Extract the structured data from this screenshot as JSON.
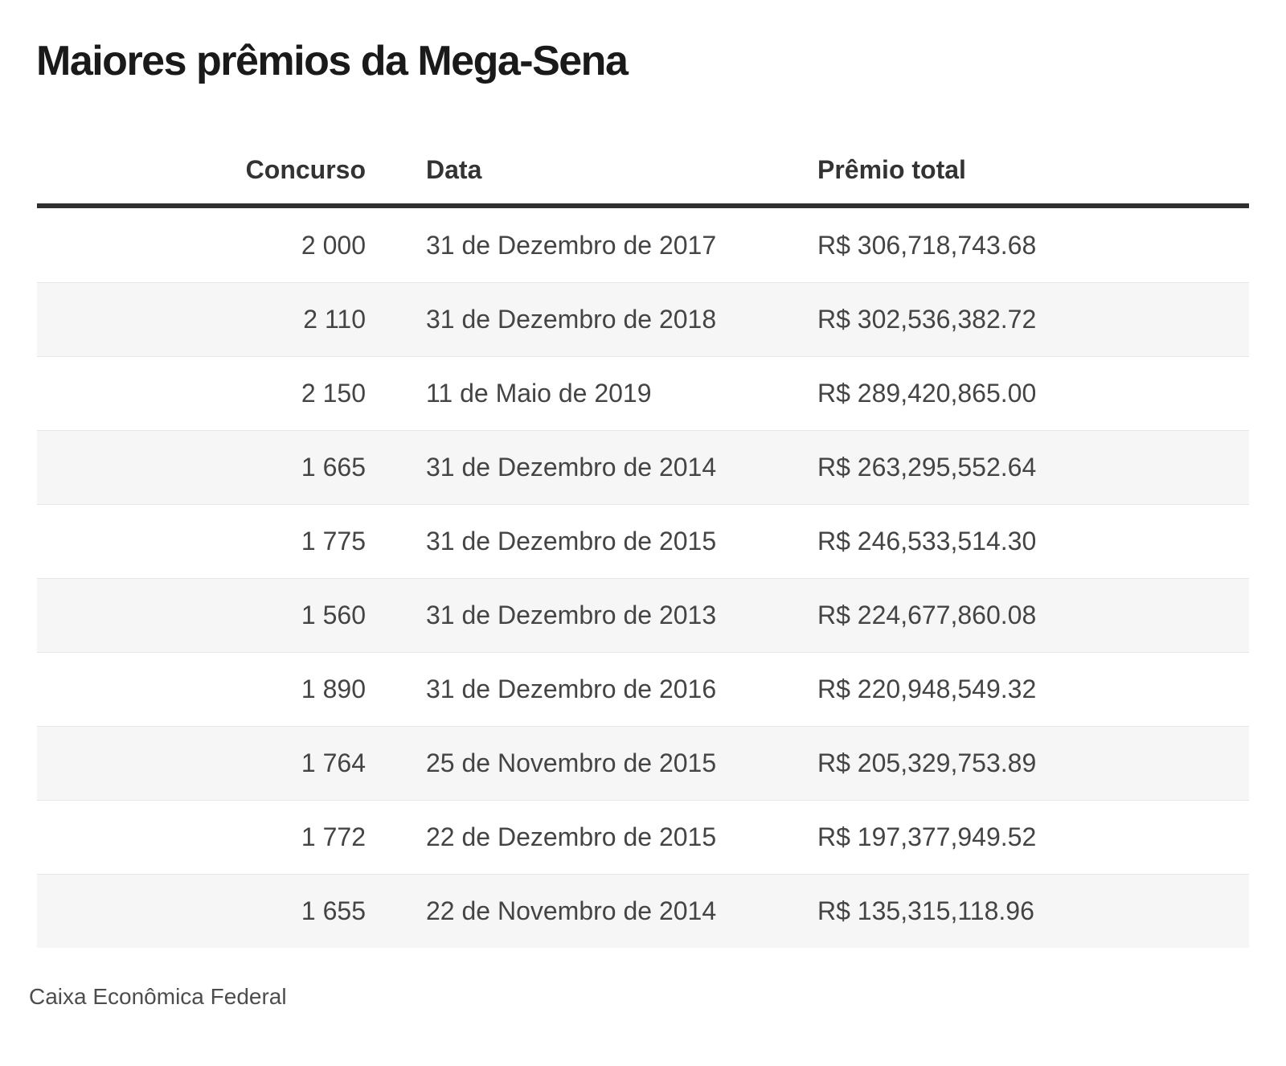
{
  "chart_data": {
    "type": "table",
    "title": "Maiores prêmios da Mega-Sena",
    "columns": [
      "Concurso",
      "Data",
      "Prêmio total"
    ],
    "rows": [
      {
        "concurso": "2 000",
        "data": "31 de Dezembro de 2017",
        "premio": "R$ 306,718,743.68"
      },
      {
        "concurso": "2 110",
        "data": "31 de Dezembro de 2018",
        "premio": "R$ 302,536,382.72"
      },
      {
        "concurso": "2 150",
        "data": "11 de Maio de 2019",
        "premio": "R$ 289,420,865.00"
      },
      {
        "concurso": "1 665",
        "data": "31 de Dezembro de 2014",
        "premio": "R$ 263,295,552.64"
      },
      {
        "concurso": "1 775",
        "data": "31 de Dezembro de 2015",
        "premio": "R$ 246,533,514.30"
      },
      {
        "concurso": "1 560",
        "data": "31 de Dezembro de 2013",
        "premio": "R$ 224,677,860.08"
      },
      {
        "concurso": "1 890",
        "data": "31 de Dezembro de 2016",
        "premio": "R$ 220,948,549.32"
      },
      {
        "concurso": "1 764",
        "data": "25 de Novembro de 2015",
        "premio": "R$ 205,329,753.89"
      },
      {
        "concurso": "1 772",
        "data": "22 de Dezembro de 2015",
        "premio": "R$ 197,377,949.52"
      },
      {
        "concurso": "1 655",
        "data": "22 de Novembro de 2014",
        "premio": "R$ 135,315,118.96"
      }
    ],
    "source": "Caixa Econômica Federal",
    "layout": {
      "striped_rows": true,
      "stripe_pattern": "even-rows-white-odd-rows-gray"
    }
  },
  "theme": {
    "background": "#ffffff",
    "title_color": "#1a1a1a",
    "header_color": "#333333",
    "text_color": "#444444",
    "alt_row_bg": "#f6f6f6",
    "row_border": "#e6e6e6",
    "header_rule_color": "#303030",
    "footer_color": "#4d4d4d"
  }
}
